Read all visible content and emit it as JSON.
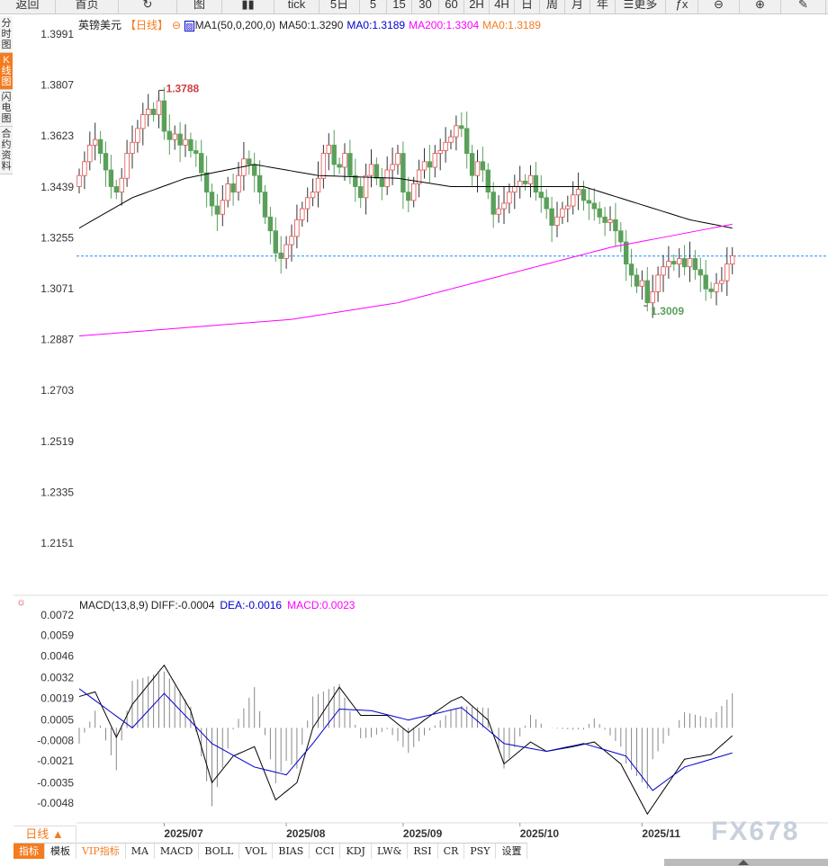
{
  "toolbar": [
    "返回",
    "首页",
    "↻",
    "图",
    "▮▮",
    "tick",
    "5日",
    "5",
    "15",
    "30",
    "60",
    "2H",
    "4H",
    "日",
    "周",
    "月",
    "年",
    "☰更多",
    "ƒx",
    "⊖",
    "⊕",
    "✎"
  ],
  "toolbar_names": [
    "back",
    "home",
    "refresh",
    "bar-chart",
    "candles",
    "tick",
    "5day",
    "5min",
    "15min",
    "30min",
    "60min",
    "2h",
    "4h",
    "day",
    "week",
    "month",
    "year",
    "more",
    "formula",
    "zoom-out",
    "zoom-in",
    "draw"
  ],
  "left_tabs": [
    {
      "label": "分时图",
      "active": false
    },
    {
      "label": "K线图",
      "active": true
    },
    {
      "label": "闪电图",
      "active": false
    },
    {
      "label": "合约资料",
      "active": false
    }
  ],
  "info": {
    "symbol": "英镑美元",
    "period": "【日线】",
    "ma_name": "MA1(50,0,200,0)",
    "ma50": "MA50:1.3290",
    "ma0a": "MA0:1.3189",
    "ma200": "MA200:1.3304",
    "ma0b": "MA0:1.3189"
  },
  "macd_info": {
    "name": "MACD(13,8,9)",
    "diff": "DIFF:-0.0004",
    "dea": "DEA:-0.0016",
    "macd": "MACD:0.0023"
  },
  "colors": {
    "up": "#e05050",
    "down": "#5aa05a",
    "ma50": "#000000",
    "ma200": "#ff00ff",
    "diff": "#000000",
    "dea": "#0000cc",
    "last": "#1e90ff",
    "accent": "#f47c20"
  },
  "chart_data": {
    "type": "candlestick",
    "price_ticks": [
      "1.3991",
      "1.3807",
      "1.3623",
      "1.3439",
      "1.3255",
      "1.3071",
      "1.2887",
      "1.2703",
      "1.2519",
      "1.2335",
      "1.2151"
    ],
    "ylim": [
      1.2151,
      1.3991
    ],
    "closes": [
      1.348,
      1.353,
      1.359,
      1.361,
      1.356,
      1.35,
      1.344,
      1.342,
      1.347,
      1.356,
      1.36,
      1.365,
      1.37,
      1.372,
      1.37,
      1.375,
      1.364,
      1.361,
      1.363,
      1.359,
      1.361,
      1.357,
      1.356,
      1.349,
      1.342,
      1.337,
      1.334,
      1.339,
      1.345,
      1.342,
      1.348,
      1.354,
      1.352,
      1.348,
      1.342,
      1.333,
      1.328,
      1.32,
      1.318,
      1.323,
      1.326,
      1.332,
      1.336,
      1.34,
      1.342,
      1.347,
      1.356,
      1.359,
      1.352,
      1.351,
      1.356,
      1.348,
      1.344,
      1.34,
      1.348,
      1.352,
      1.347,
      1.344,
      1.35,
      1.352,
      1.356,
      1.342,
      1.339,
      1.345,
      1.35,
      1.353,
      1.351,
      1.356,
      1.357,
      1.36,
      1.362,
      1.366,
      1.365,
      1.356,
      1.348,
      1.353,
      1.35,
      1.342,
      1.334,
      1.336,
      1.338,
      1.342,
      1.344,
      1.346,
      1.345,
      1.348,
      1.342,
      1.34,
      1.336,
      1.33,
      1.333,
      1.336,
      1.337,
      1.341,
      1.343,
      1.339,
      1.338,
      1.336,
      1.333,
      1.331,
      1.332,
      1.328,
      1.324,
      1.316,
      1.312,
      1.308,
      1.31,
      1.302,
      1.306,
      1.312,
      1.315,
      1.317,
      1.316,
      1.318,
      1.315,
      1.318,
      1.314,
      1.312,
      1.307,
      1.306,
      1.309,
      1.31,
      1.316,
      1.319
    ],
    "first_open": 1.344,
    "ma50": [
      [
        0,
        1.329
      ],
      [
        10,
        1.34
      ],
      [
        20,
        1.347
      ],
      [
        33,
        1.352
      ],
      [
        45,
        1.348
      ],
      [
        60,
        1.347
      ],
      [
        70,
        1.344
      ],
      [
        90,
        1.344
      ],
      [
        95,
        1.344
      ],
      [
        105,
        1.338
      ],
      [
        115,
        1.332
      ],
      [
        123,
        1.329
      ]
    ],
    "ma200": [
      [
        0,
        1.29
      ],
      [
        40,
        1.296
      ],
      [
        60,
        1.302
      ],
      [
        80,
        1.312
      ],
      [
        100,
        1.322
      ],
      [
        123,
        1.3304
      ]
    ],
    "last_price": 1.3189,
    "high_label": {
      "index": 15,
      "value": "1.3788"
    },
    "low_label": {
      "index": 107,
      "value": "1.3009"
    },
    "date_labels": [
      {
        "index": 16,
        "label": "2025/07"
      },
      {
        "index": 39,
        "label": "2025/08"
      },
      {
        "index": 61,
        "label": "2025/09"
      },
      {
        "index": 83,
        "label": "2025/10"
      },
      {
        "index": 106,
        "label": "2025/11"
      }
    ],
    "macd_ticks": [
      "0.0072",
      "0.0059",
      "0.0046",
      "0.0032",
      "0.0019",
      "0.0005",
      "-0.0008",
      "-0.0021",
      "-0.0035",
      "-0.0048"
    ],
    "macd_ylim": [
      -0.0048,
      0.0072
    ],
    "diff": [
      [
        0,
        0.002
      ],
      [
        3,
        0.0023
      ],
      [
        7,
        -0.0006
      ],
      [
        10,
        0.0015
      ],
      [
        16,
        0.004
      ],
      [
        21,
        0.0011
      ],
      [
        25,
        -0.0035
      ],
      [
        29,
        -0.0018
      ],
      [
        33,
        -0.0012
      ],
      [
        37,
        -0.0046
      ],
      [
        41,
        -0.0035
      ],
      [
        44,
        0.0
      ],
      [
        49,
        0.0026
      ],
      [
        53,
        0.0008
      ],
      [
        58,
        0.0008
      ],
      [
        62,
        -0.0003
      ],
      [
        65,
        0.0005
      ],
      [
        70,
        0.0017
      ],
      [
        72,
        0.002
      ],
      [
        77,
        0.0005
      ],
      [
        80,
        -0.0023
      ],
      [
        85,
        -0.0009
      ],
      [
        88,
        -0.0015
      ],
      [
        93,
        -0.0012
      ],
      [
        97,
        -0.0009
      ],
      [
        102,
        -0.0023
      ],
      [
        107,
        -0.0055
      ],
      [
        110,
        -0.004
      ],
      [
        114,
        -0.002
      ],
      [
        119,
        -0.0017
      ],
      [
        123,
        -0.0005
      ]
    ],
    "dea": [
      [
        0,
        0.0025
      ],
      [
        10,
        0.0
      ],
      [
        16,
        0.0022
      ],
      [
        25,
        -0.001
      ],
      [
        33,
        -0.0025
      ],
      [
        39,
        -0.003
      ],
      [
        44,
        -0.001
      ],
      [
        49,
        0.0012
      ],
      [
        55,
        0.0011
      ],
      [
        62,
        0.0005
      ],
      [
        72,
        0.0013
      ],
      [
        80,
        -0.001
      ],
      [
        88,
        -0.0015
      ],
      [
        95,
        -0.001
      ],
      [
        103,
        -0.0018
      ],
      [
        108,
        -0.004
      ],
      [
        114,
        -0.0025
      ],
      [
        123,
        -0.0016
      ]
    ]
  },
  "period_button": "日线 ▲",
  "bottom_tabs": [
    {
      "label": "指标",
      "style": "active"
    },
    {
      "label": "模板",
      "style": ""
    },
    {
      "label": "VIP指标",
      "style": "vip"
    },
    {
      "label": "MA",
      "style": ""
    },
    {
      "label": "MACD",
      "style": ""
    },
    {
      "label": "BOLL",
      "style": ""
    },
    {
      "label": "VOL",
      "style": ""
    },
    {
      "label": "BIAS",
      "style": ""
    },
    {
      "label": "CCI",
      "style": ""
    },
    {
      "label": "KDJ",
      "style": ""
    },
    {
      "label": "LW&",
      "style": ""
    },
    {
      "label": "RSI",
      "style": ""
    },
    {
      "label": "CR",
      "style": ""
    },
    {
      "label": "PSY",
      "style": ""
    },
    {
      "label": "设置",
      "style": ""
    }
  ],
  "watermark": "FX678"
}
